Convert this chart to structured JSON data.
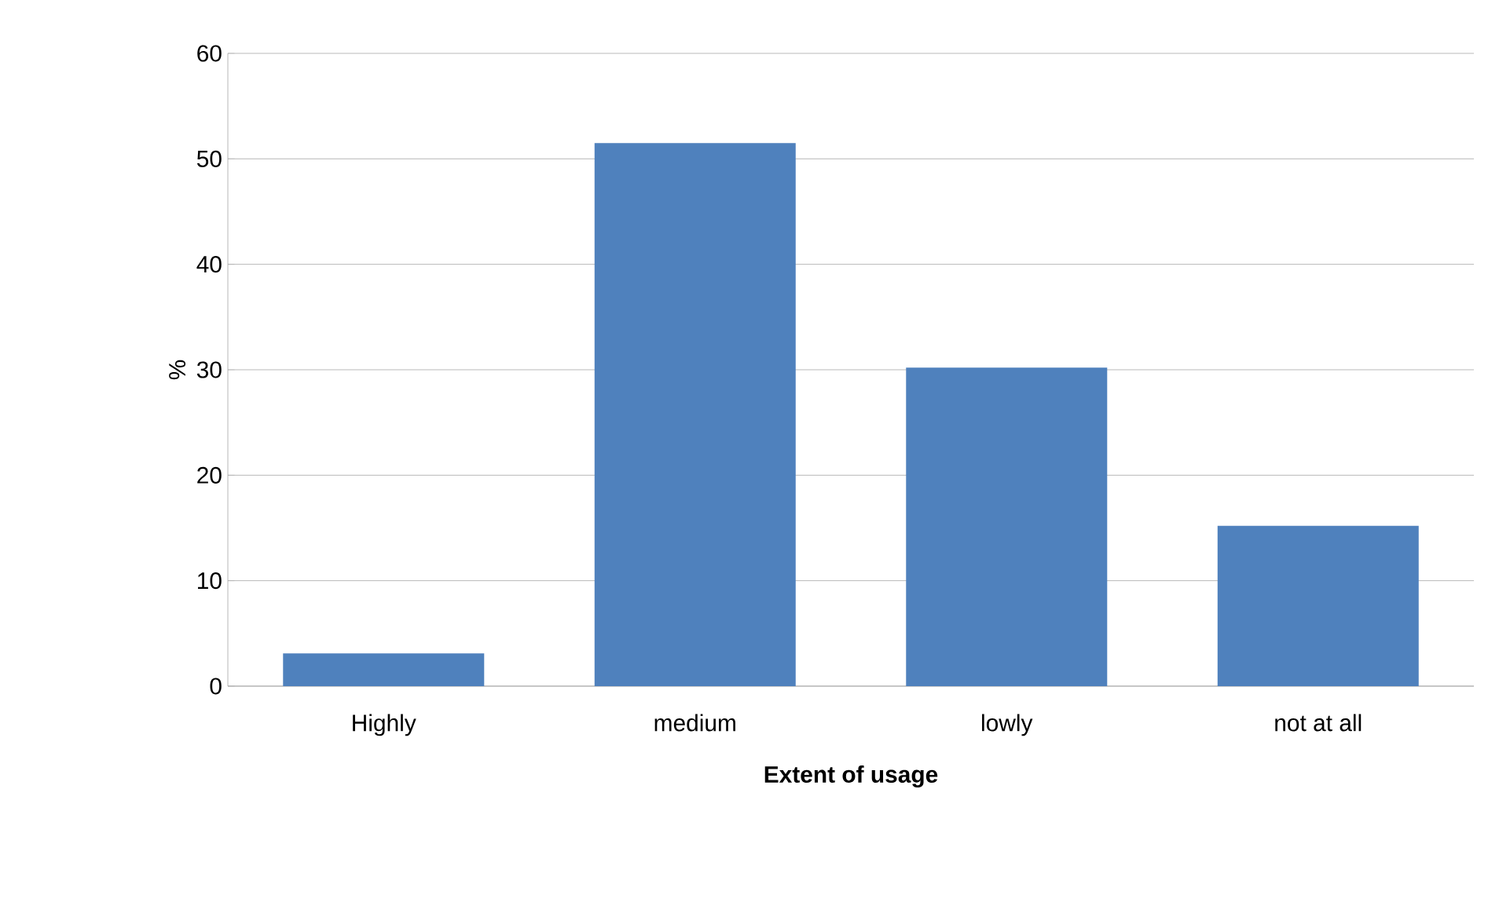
{
  "chart_data": {
    "type": "bar",
    "xlabel": "Extent of usage",
    "ylabel": "%",
    "categories": [
      "Highly",
      "medium",
      "lowly",
      "not at all"
    ],
    "values": [
      3.1,
      51.5,
      30.2,
      15.2
    ],
    "color": "#4f81bd",
    "ylim": [
      0,
      60
    ],
    "yticks": [
      0,
      10,
      20,
      30,
      40,
      50,
      60
    ],
    "grid": "y"
  }
}
